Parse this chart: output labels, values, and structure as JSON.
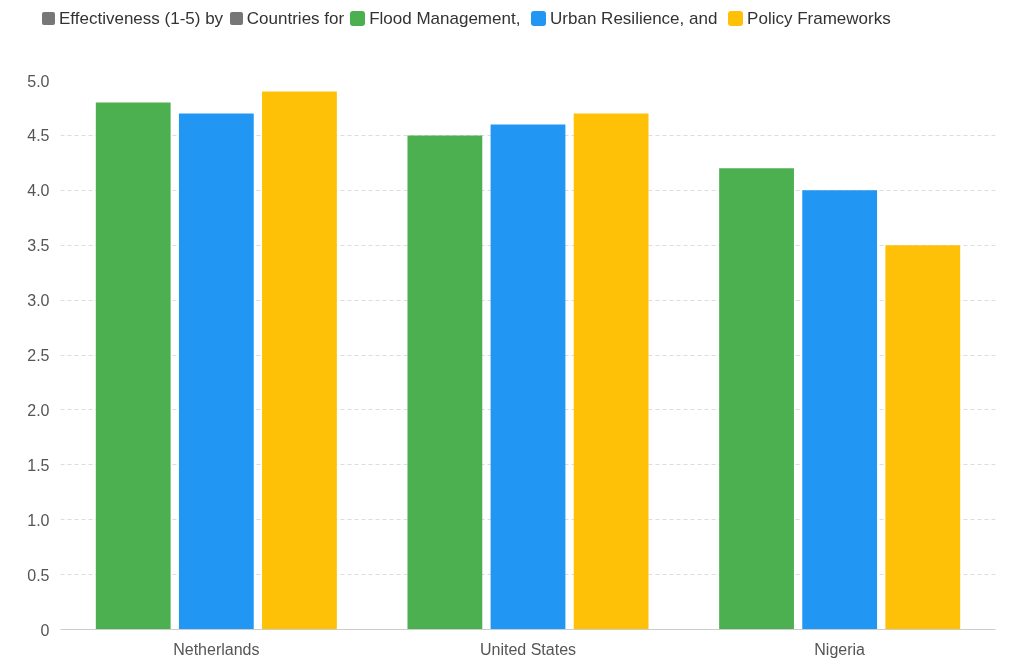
{
  "chart_data": {
    "type": "bar",
    "xlabel": "Countries",
    "ylabel": "Effectiveness (1-5)",
    "annotations": [
      "by",
      "for",
      ",",
      ", and"
    ],
    "categories": [
      "Netherlands",
      "United States",
      "Nigeria"
    ],
    "series": [
      {
        "name": "Flood Management",
        "color": "#4caf50",
        "values": [
          4.8,
          4.5,
          4.2
        ]
      },
      {
        "name": "Urban Resilience",
        "color": "#2196f3",
        "values": [
          4.7,
          4.6,
          4.0
        ]
      },
      {
        "name": "Policy Frameworks",
        "color": "#ffc107",
        "values": [
          4.9,
          4.7,
          3.5
        ]
      }
    ],
    "ylim": [
      0,
      5
    ],
    "yticks": [
      0,
      {
        "value": 0.5,
        "label": "0.5"
      },
      {
        "value": 1,
        "label": "1.0"
      },
      {
        "value": 1.5,
        "label": "1.5"
      },
      {
        "value": 2,
        "label": "2.0"
      },
      {
        "value": 2.5,
        "label": "2.5"
      },
      {
        "value": 3,
        "label": "3.0"
      },
      {
        "value": 3.5,
        "label": "3.5"
      },
      {
        "value": 4,
        "label": "4.0"
      },
      {
        "value": 4.5,
        "label": "4.5"
      },
      {
        "value": 5,
        "label": "5.0"
      }
    ],
    "grid": "y",
    "legend": "top"
  }
}
